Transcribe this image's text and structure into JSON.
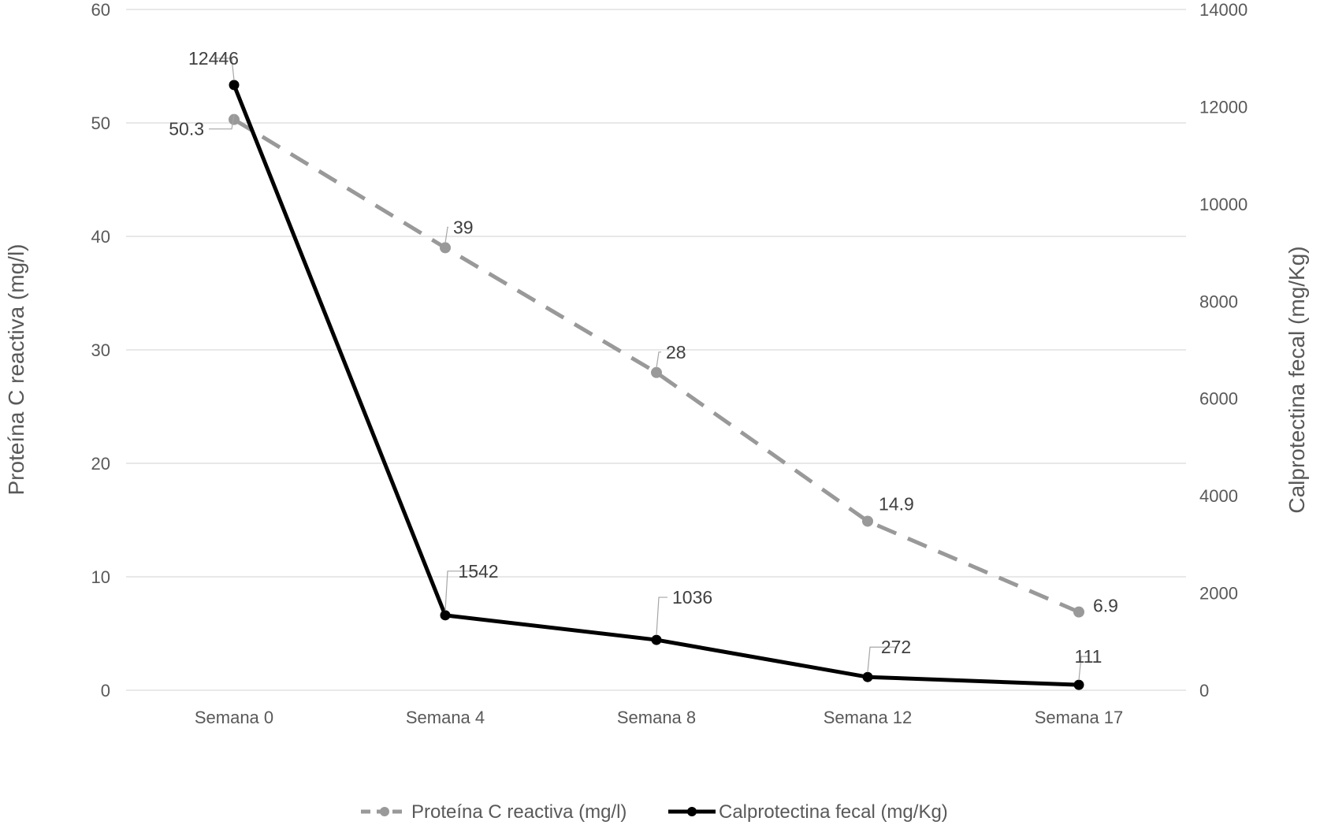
{
  "chart_data": {
    "type": "line",
    "categories": [
      "Semana 0",
      "Semana 4",
      "Semana 8",
      "Semana 12",
      "Semana 17"
    ],
    "series": [
      {
        "name": "Proteína C reactiva (mg/l)",
        "axis": "left",
        "values": [
          50.3,
          39,
          28,
          14.9,
          6.9
        ],
        "data_labels": [
          "50.3",
          "39",
          "28",
          "14.9",
          "6.9"
        ],
        "color": "#999999",
        "line_style": "dashed",
        "marker": "circle"
      },
      {
        "name": "Calprotectina fecal (mg/Kg)",
        "axis": "right",
        "values": [
          12446,
          1542,
          1036,
          272,
          111
        ],
        "data_labels": [
          "12446",
          "1542",
          "1036",
          "272",
          "111"
        ],
        "color": "#000000",
        "line_style": "solid",
        "marker": "circle"
      }
    ],
    "y_left": {
      "label": "Proteína C reactiva (mg/l)",
      "lim": [
        0,
        60
      ],
      "ticks": [
        0,
        10,
        20,
        30,
        40,
        50,
        60
      ]
    },
    "y_right": {
      "label": "Calprotectina fecal (mg/Kg)",
      "lim": [
        0,
        14000
      ],
      "ticks": [
        0,
        2000,
        4000,
        6000,
        8000,
        10000,
        12000,
        14000
      ]
    },
    "grid": true,
    "legend_position": "bottom"
  }
}
